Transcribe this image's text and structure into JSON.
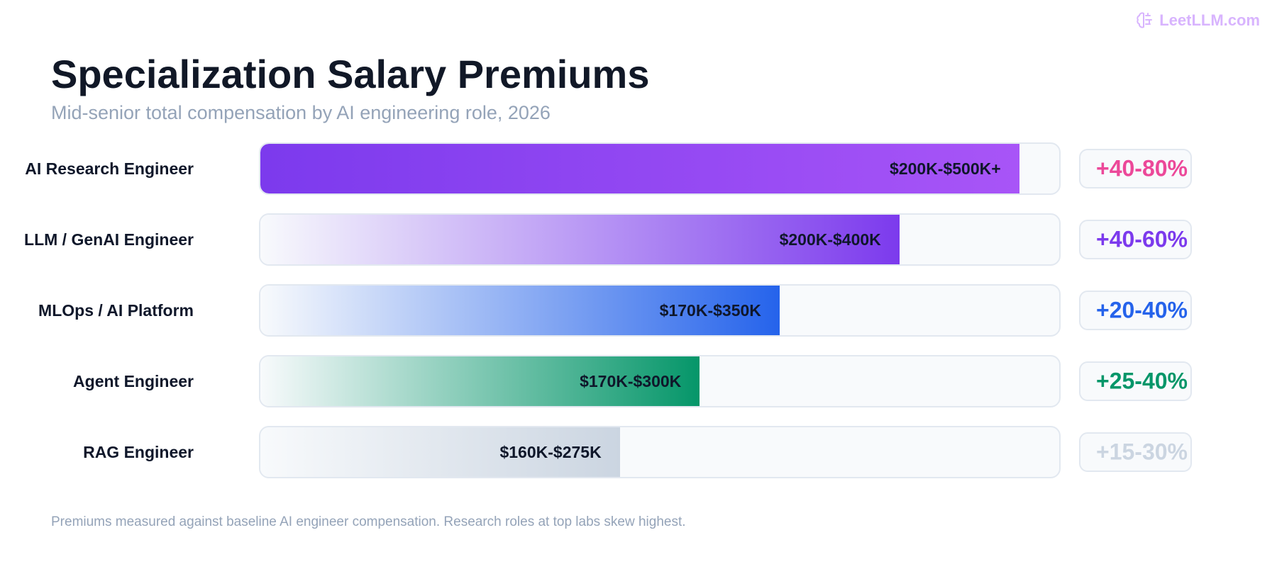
{
  "brand": {
    "name": "LeetLLM.com",
    "icon": "brain-icon",
    "color": "#d8b4fe"
  },
  "title": "Specialization Salary Premiums",
  "subtitle": "Mid-senior total compensation by AI engineering role, 2026",
  "footer": "Premiums measured against baseline AI engineer compensation. Research roles at top labs skew highest.",
  "chart_data": {
    "type": "bar",
    "orientation": "horizontal",
    "categories": [
      "AI Research Engineer",
      "LLM / GenAI Engineer",
      "MLOps / AI Platform",
      "Agent Engineer",
      "RAG Engineer"
    ],
    "rows": [
      {
        "role": "AI Research Engineer",
        "range": "$200K-$500K+",
        "premium": "+40-80%",
        "fill": 0.95,
        "from": "#7c3aed",
        "to": "#a855f7",
        "premium_color": "#ec4899"
      },
      {
        "role": "LLM / GenAI Engineer",
        "range": "$200K-$400K",
        "premium": "+40-60%",
        "fill": 0.8,
        "from": "#f8fafc",
        "to": "#7c3aed",
        "premium_color": "#7c3aed"
      },
      {
        "role": "MLOps / AI Platform",
        "range": "$170K-$350K",
        "premium": "+20-40%",
        "fill": 0.65,
        "from": "#f8fafc",
        "to": "#2563eb",
        "premium_color": "#2563eb"
      },
      {
        "role": "Agent Engineer",
        "range": "$170K-$300K",
        "premium": "+25-40%",
        "fill": 0.55,
        "from": "#f8fafc",
        "to": "#059669",
        "premium_color": "#059669"
      },
      {
        "role": "RAG Engineer",
        "range": "$160K-$275K",
        "premium": "+15-30%",
        "fill": 0.45,
        "from": "#f8fafc",
        "to": "#cbd5e1",
        "premium_color": "#cbd5e1"
      }
    ]
  }
}
